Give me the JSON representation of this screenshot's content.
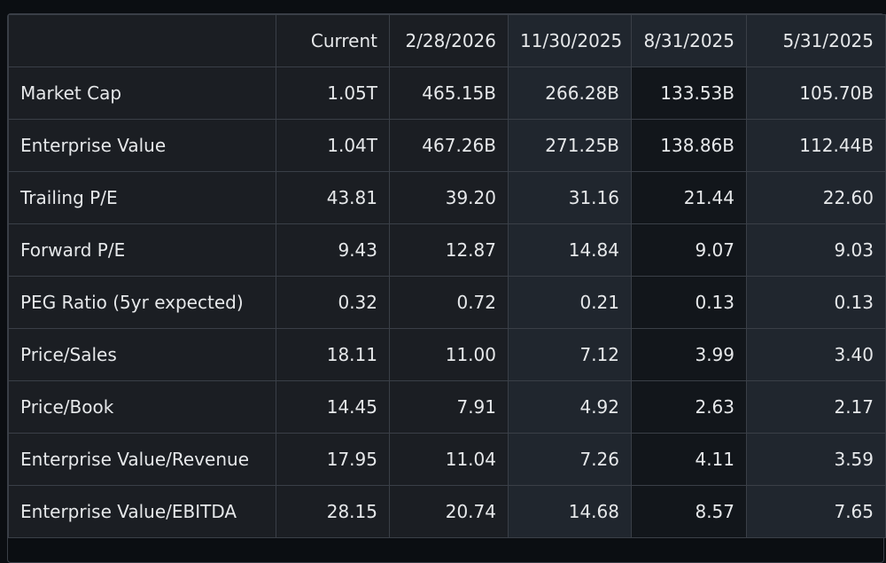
{
  "table": {
    "columns": [
      "Current",
      "2/28/2026",
      "11/30/2025",
      "8/31/2025",
      "5/31/2025"
    ],
    "rows": [
      {
        "label": "Market Cap",
        "values": [
          "1.05T",
          "465.15B",
          "266.28B",
          "133.53B",
          "105.70B"
        ]
      },
      {
        "label": "Enterprise Value",
        "values": [
          "1.04T",
          "467.26B",
          "271.25B",
          "138.86B",
          "112.44B"
        ]
      },
      {
        "label": "Trailing P/E",
        "values": [
          "43.81",
          "39.20",
          "31.16",
          "21.44",
          "22.60"
        ]
      },
      {
        "label": "Forward P/E",
        "values": [
          "9.43",
          "12.87",
          "14.84",
          "9.07",
          "9.03"
        ]
      },
      {
        "label": "PEG Ratio (5yr expected)",
        "values": [
          "0.32",
          "0.72",
          "0.21",
          "0.13",
          "0.13"
        ]
      },
      {
        "label": "Price/Sales",
        "values": [
          "18.11",
          "11.00",
          "7.12",
          "3.99",
          "3.40"
        ]
      },
      {
        "label": "Price/Book",
        "values": [
          "14.45",
          "7.91",
          "4.92",
          "2.63",
          "2.17"
        ]
      },
      {
        "label": "Enterprise Value/Revenue",
        "values": [
          "17.95",
          "11.04",
          "7.26",
          "4.11",
          "3.59"
        ]
      },
      {
        "label": "Enterprise Value/EBITDA",
        "values": [
          "28.15",
          "20.74",
          "14.68",
          "8.57",
          "7.65"
        ]
      }
    ]
  }
}
